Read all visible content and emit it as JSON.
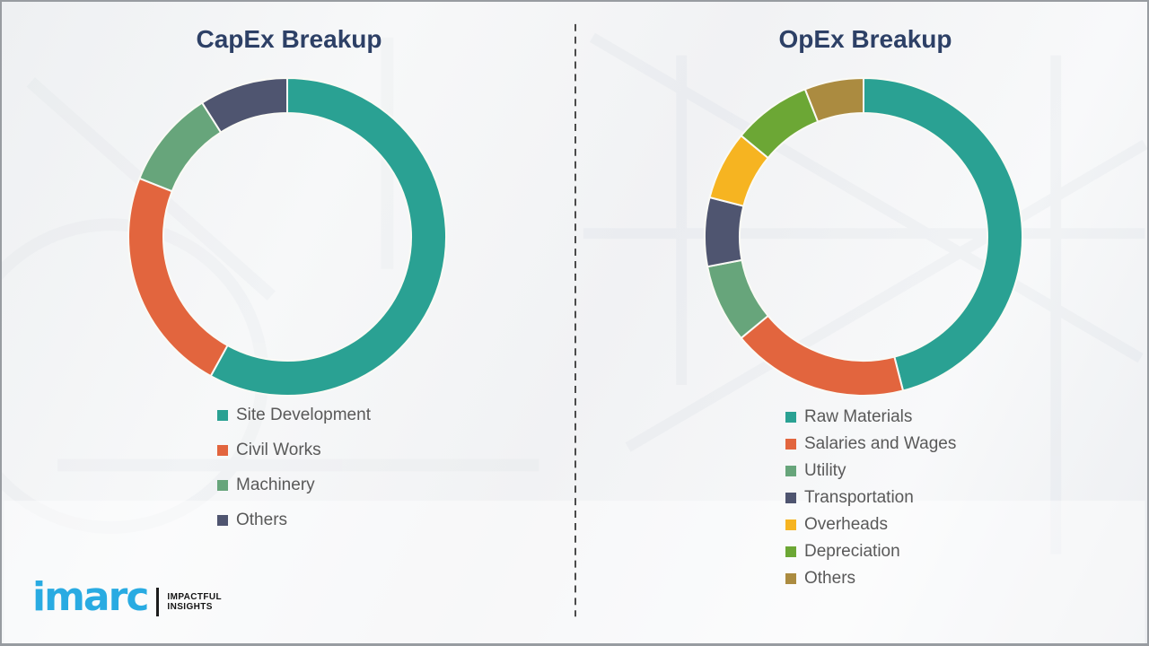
{
  "page": {
    "background_color": "#F1F2F4",
    "frame_border_color": "#989CA1",
    "divider_style": "vertical-dashed",
    "divider_color": "#4A4A4A"
  },
  "chart_data": [
    {
      "type": "pie",
      "subtype": "donut",
      "title": "CapEx Breakup",
      "categories": [
        "Site Development",
        "Civil Works",
        "Machinery",
        "Others"
      ],
      "values": [
        58,
        23,
        10,
        9
      ],
      "unit": "percent-share-estimated-from-arc-angles",
      "colors": [
        "#2AA193",
        "#E2653E",
        "#67A57B",
        "#4F5570"
      ],
      "start_angle_deg": 0,
      "direction": "clockwise",
      "inner_radius_ratio": 0.78,
      "segment_gap_color": "#FAFAF5",
      "legend_position": "below-chart",
      "data_labels": "none"
    },
    {
      "type": "pie",
      "subtype": "donut",
      "title": "OpEx Breakup",
      "categories": [
        "Raw Materials",
        "Salaries and Wages",
        "Utility",
        "Transportation",
        "Overheads",
        "Depreciation",
        "Others"
      ],
      "values": [
        46,
        18,
        8,
        7,
        7,
        8,
        6
      ],
      "unit": "percent-share-estimated-from-arc-angles",
      "colors": [
        "#2AA193",
        "#E2653E",
        "#67A57B",
        "#4F5570",
        "#F6B421",
        "#6CA735",
        "#AB8B40"
      ],
      "start_angle_deg": 0,
      "direction": "clockwise",
      "inner_radius_ratio": 0.78,
      "segment_gap_color": "#FAFAF5",
      "legend_position": "below-chart",
      "data_labels": "none"
    }
  ],
  "titles": {
    "title_color": "#2D4066",
    "legend_text_color": "#595959"
  },
  "logo": {
    "brand": "imarc",
    "brand_color": "#29ABE2",
    "tagline": [
      "IMPACTFUL",
      "INSIGHTS"
    ]
  }
}
